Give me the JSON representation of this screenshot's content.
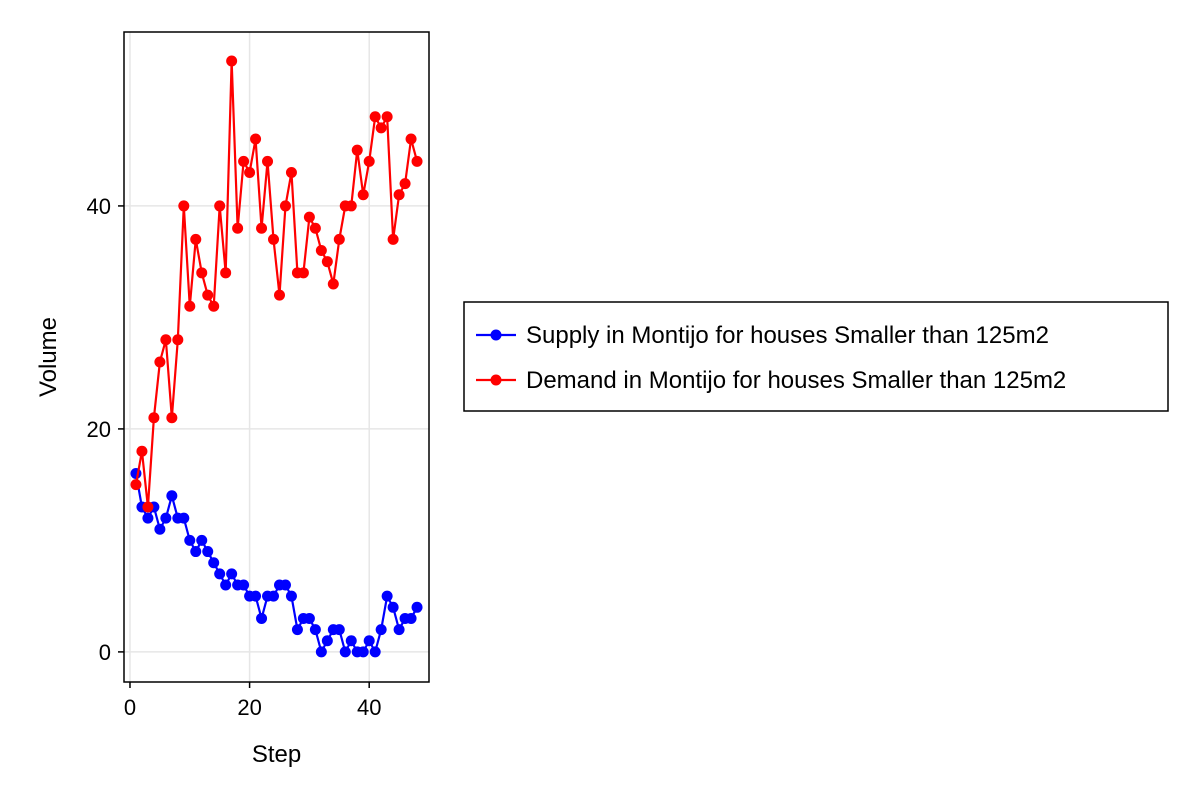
{
  "chart_data": {
    "type": "line",
    "xlabel": "Step",
    "ylabel": "Volume",
    "xlim": [
      -1,
      50
    ],
    "ylim": [
      -2.7,
      55.6
    ],
    "xticks": [
      0,
      20,
      40
    ],
    "yticks": [
      0,
      20,
      40
    ],
    "grid": true,
    "legend_position": "right",
    "series": [
      {
        "name": "Supply in Montijo for houses Smaller than 125m2",
        "color": "#0000ff",
        "x": [
          1,
          2,
          3,
          4,
          5,
          6,
          7,
          8,
          9,
          10,
          11,
          12,
          13,
          14,
          15,
          16,
          17,
          18,
          19,
          20,
          21,
          22,
          23,
          24,
          25,
          26,
          27,
          28,
          29,
          30,
          31,
          32,
          33,
          34,
          35,
          36,
          37,
          38,
          39,
          40,
          41,
          42,
          43,
          44,
          45,
          46,
          47,
          48
        ],
        "y": [
          16,
          13,
          12,
          13,
          11,
          12,
          14,
          12,
          12,
          10,
          9,
          10,
          9,
          8,
          7,
          6,
          7,
          6,
          6,
          5,
          5,
          3,
          5,
          5,
          6,
          6,
          5,
          2,
          3,
          3,
          2,
          0,
          1,
          2,
          2,
          0,
          1,
          0,
          0,
          1,
          0,
          2,
          5,
          4,
          2,
          3,
          3,
          4
        ]
      },
      {
        "name": "Demand in Montijo for houses Smaller than 125m2",
        "color": "#ff0000",
        "x": [
          1,
          2,
          3,
          4,
          5,
          6,
          7,
          8,
          9,
          10,
          11,
          12,
          13,
          14,
          15,
          16,
          17,
          18,
          19,
          20,
          21,
          22,
          23,
          24,
          25,
          26,
          27,
          28,
          29,
          30,
          31,
          32,
          33,
          34,
          35,
          36,
          37,
          38,
          39,
          40,
          41,
          42,
          43,
          44,
          45,
          46,
          47,
          48
        ],
        "y": [
          15,
          18,
          13,
          21,
          26,
          28,
          21,
          28,
          40,
          31,
          37,
          34,
          32,
          31,
          40,
          34,
          53,
          38,
          44,
          43,
          46,
          38,
          44,
          37,
          32,
          40,
          43,
          34,
          34,
          39,
          38,
          36,
          35,
          33,
          37,
          40,
          40,
          45,
          41,
          44,
          48,
          47,
          48,
          37,
          41,
          42,
          46,
          44
        ]
      }
    ]
  }
}
